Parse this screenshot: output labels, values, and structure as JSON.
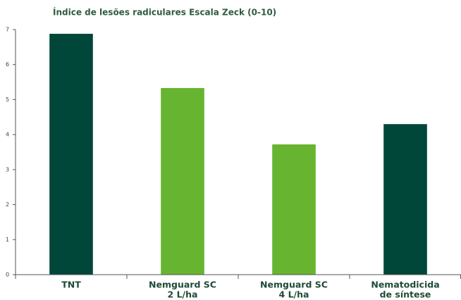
{
  "chart_data": {
    "type": "bar",
    "title": "Índice de lesões radiculares Escala Zeck (0-10)",
    "categories": [
      [
        "TNT"
      ],
      [
        "Nemguard SC",
        "2 L/ha"
      ],
      [
        "Nemguard SC",
        "4 L/ha"
      ],
      [
        "Nematodicida",
        "de síntese"
      ]
    ],
    "values": [
      6.88,
      5.33,
      3.72,
      4.3
    ],
    "colors": [
      "#00473a",
      "#67b430",
      "#67b430",
      "#00473a"
    ],
    "ylim": [
      0,
      7
    ],
    "yticks": [
      0,
      1,
      2,
      3,
      4,
      5,
      6,
      7
    ],
    "grid": false
  }
}
